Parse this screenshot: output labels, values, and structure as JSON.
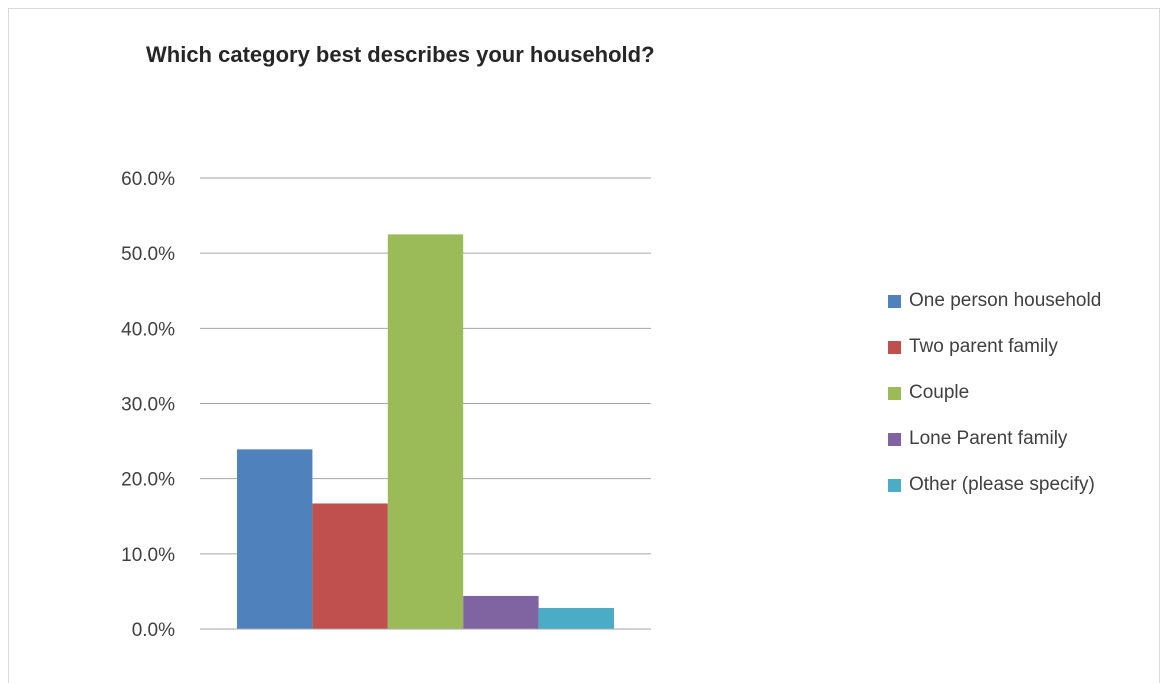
{
  "chart_data": {
    "type": "bar",
    "title": "Which category best describes your household?",
    "xlabel": "",
    "ylabel": "",
    "ylim": [
      0,
      60
    ],
    "yticks": [
      "0.0%",
      "10.0%",
      "20.0%",
      "30.0%",
      "40.0%",
      "50.0%",
      "60.0%"
    ],
    "grid": true,
    "legend_position": "right",
    "series": [
      {
        "name": "One person household",
        "value": 23.9,
        "color": "#4f81bd"
      },
      {
        "name": "Two parent family",
        "value": 16.7,
        "color": "#c0504d"
      },
      {
        "name": "Couple",
        "value": 52.5,
        "color": "#9bbb59"
      },
      {
        "name": "Lone Parent family",
        "value": 4.4,
        "color": "#8064a2"
      },
      {
        "name": "Other (please specify)",
        "value": 2.8,
        "color": "#4bacc6"
      }
    ]
  }
}
